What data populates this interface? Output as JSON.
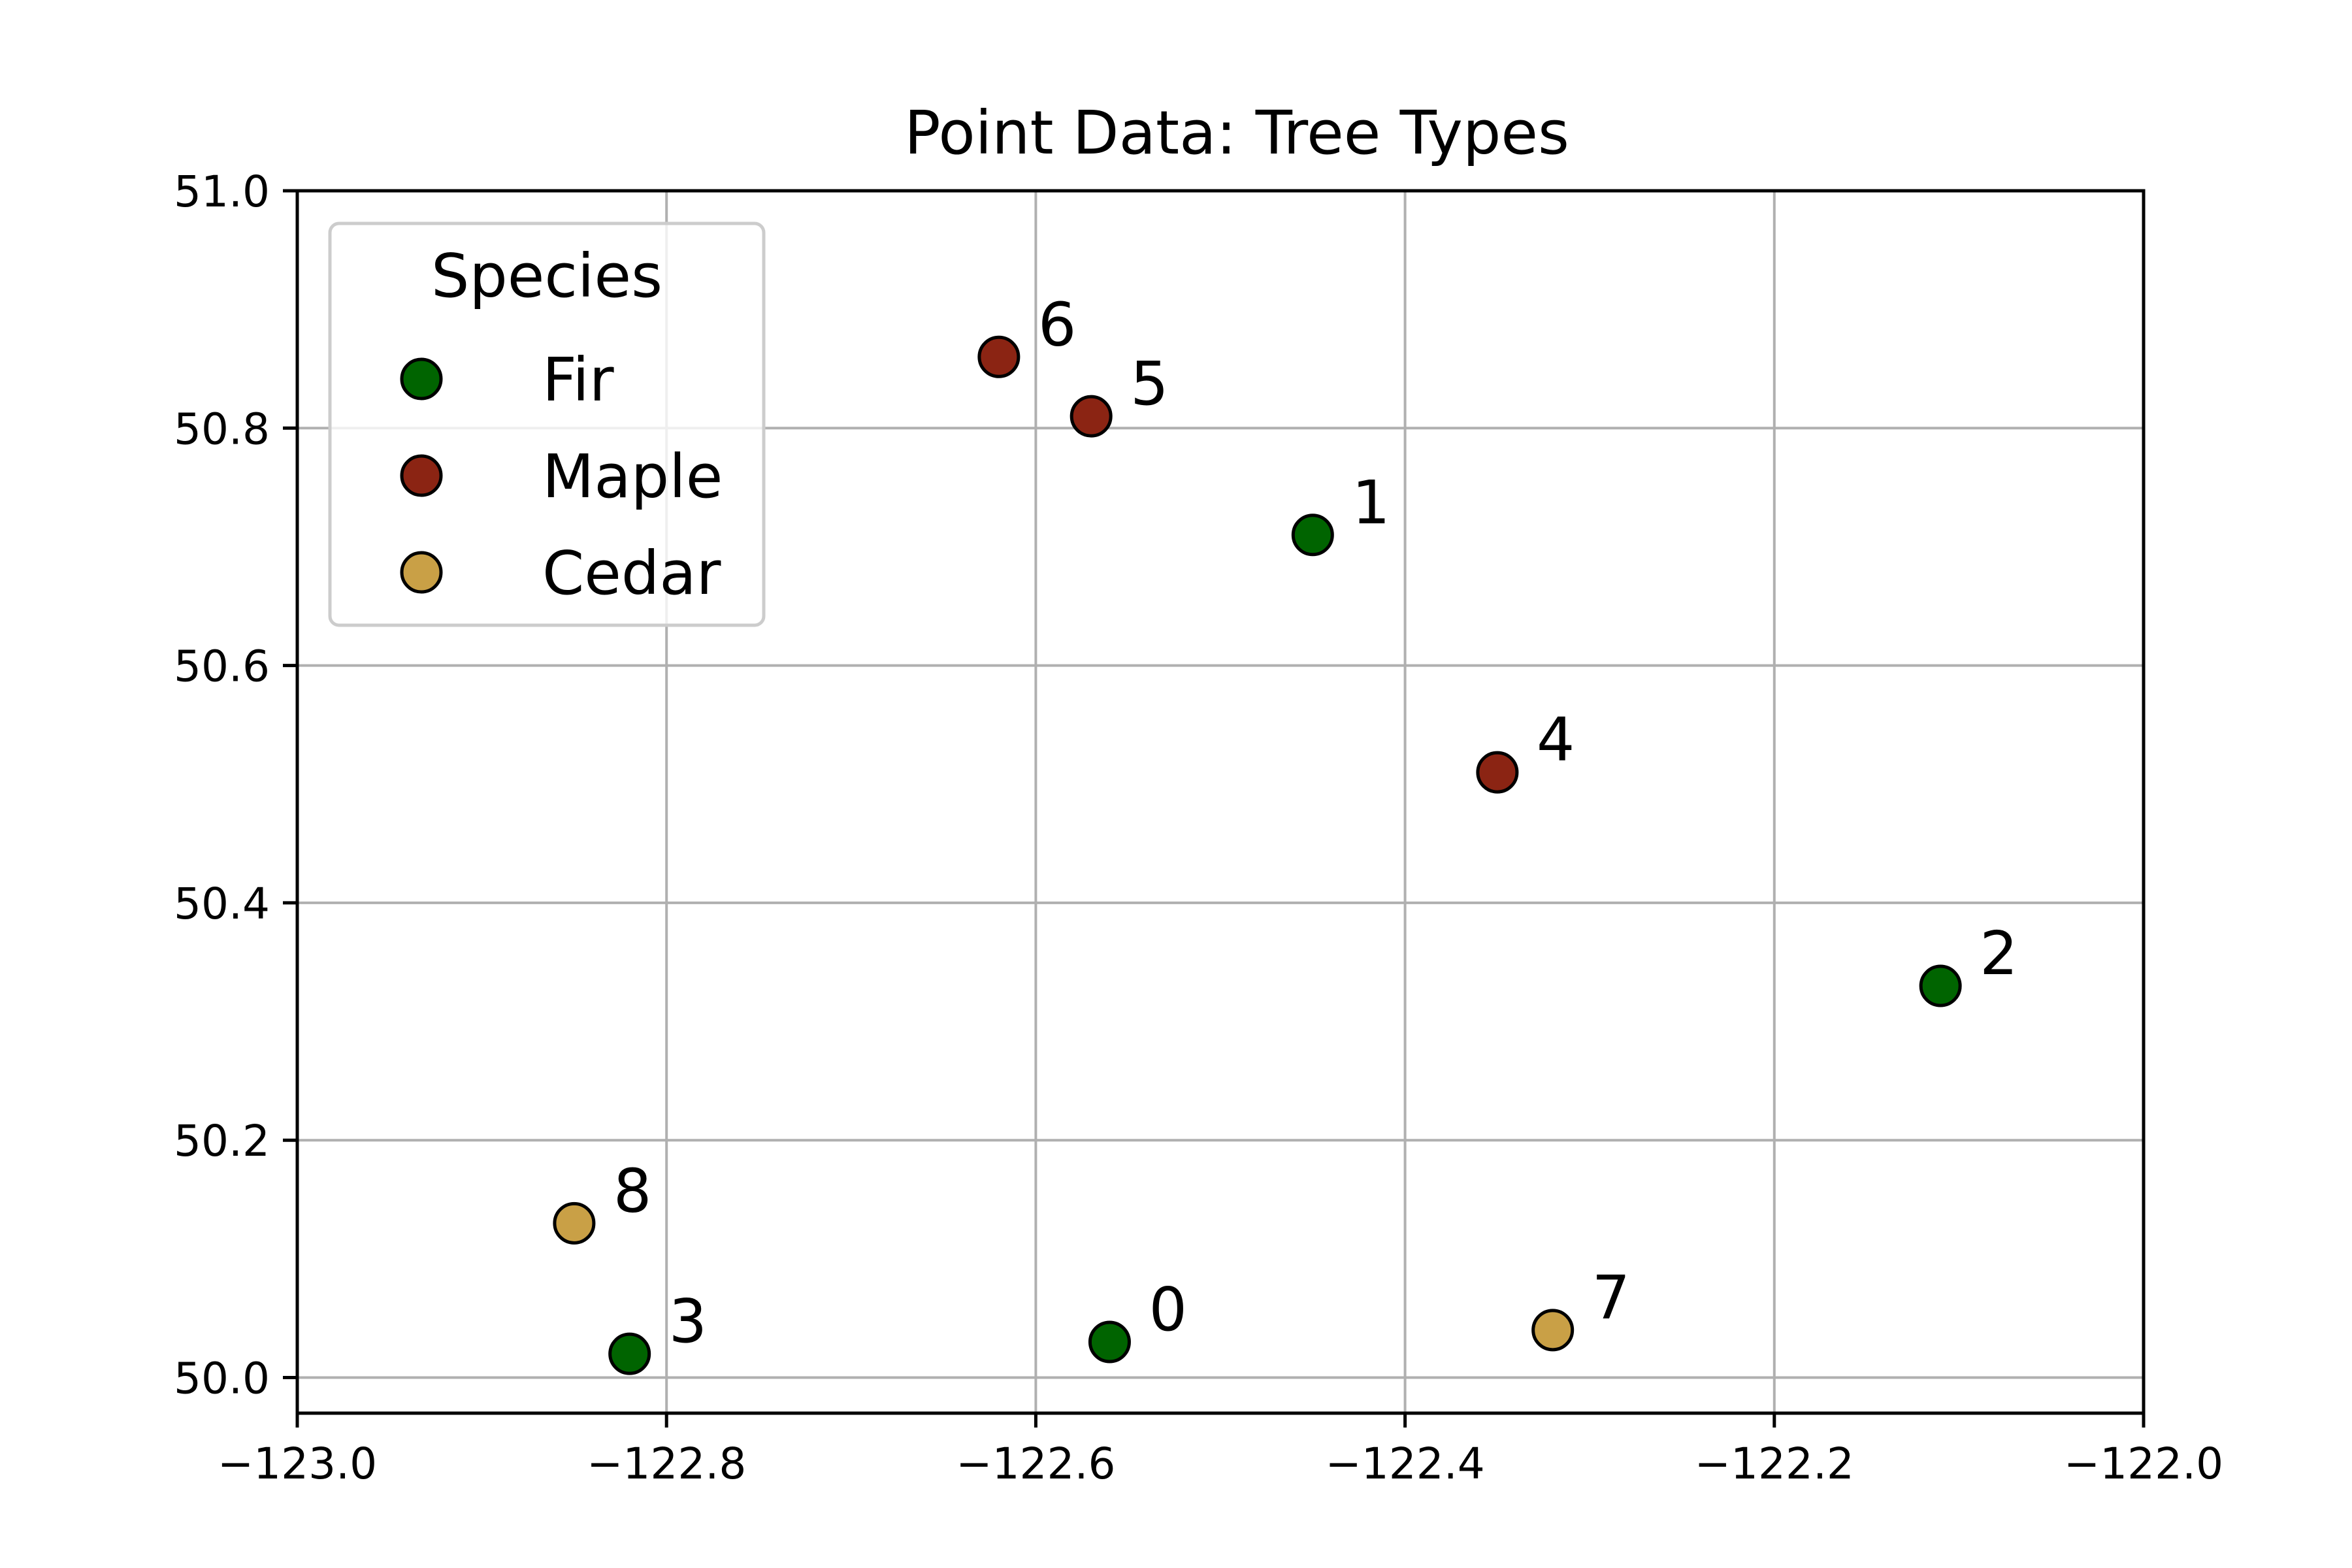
{
  "chart_data": {
    "type": "scatter",
    "title": "Point Data: Tree Types",
    "xlabel": "",
    "ylabel": "",
    "xlim": [
      -123.0,
      -122.0
    ],
    "ylim": [
      49.97,
      51.0
    ],
    "x_ticks": [
      -123.0,
      -122.8,
      -122.6,
      -122.4,
      -122.2,
      -122.0
    ],
    "x_tick_labels": [
      "−123.0",
      "−122.8",
      "−122.6",
      "−122.4",
      "−122.2",
      "−122.0"
    ],
    "y_ticks": [
      50.0,
      50.2,
      50.4,
      50.6,
      50.8,
      51.0
    ],
    "y_tick_labels": [
      "50.0",
      "50.2",
      "50.4",
      "50.6",
      "50.8",
      "51.0"
    ],
    "grid": true,
    "legend": {
      "title": "Species",
      "placement": "top-left",
      "entries": [
        {
          "label": "Fir",
          "color": "#006400"
        },
        {
          "label": "Maple",
          "color": "#8b2413"
        },
        {
          "label": "Cedar",
          "color": "#c9a046"
        }
      ]
    },
    "points": [
      {
        "label": "0",
        "x": -122.56,
        "y": 50.03,
        "species": "Fir"
      },
      {
        "label": "1",
        "x": -122.45,
        "y": 50.71,
        "species": "Fir"
      },
      {
        "label": "2",
        "x": -122.11,
        "y": 50.33,
        "species": "Fir"
      },
      {
        "label": "3",
        "x": -122.82,
        "y": 50.02,
        "species": "Fir"
      },
      {
        "label": "4",
        "x": -122.35,
        "y": 50.51,
        "species": "Maple"
      },
      {
        "label": "5",
        "x": -122.57,
        "y": 50.81,
        "species": "Maple"
      },
      {
        "label": "6",
        "x": -122.62,
        "y": 50.86,
        "species": "Maple"
      },
      {
        "label": "7",
        "x": -122.32,
        "y": 50.04,
        "species": "Cedar"
      },
      {
        "label": "8",
        "x": -122.85,
        "y": 50.13,
        "species": "Cedar"
      }
    ]
  }
}
